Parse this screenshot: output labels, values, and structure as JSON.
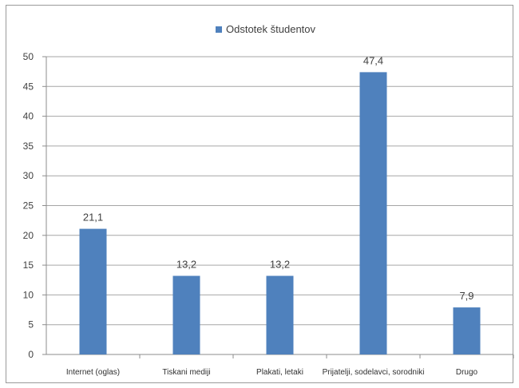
{
  "chart_data": {
    "type": "bar",
    "legend": {
      "label": "Odstotek študentov",
      "position": "top"
    },
    "categories": [
      "Internet (oglas)",
      "Tiskani mediji",
      "Plakati, letaki",
      "Prijatelji, sodelavci, sorodniki",
      "Drugo"
    ],
    "series": [
      {
        "name": "Odstotek študentov",
        "values": [
          21.1,
          13.2,
          13.2,
          47.4,
          7.9
        ],
        "color": "#4f81bd"
      }
    ],
    "data_labels": [
      "21,1",
      "13,2",
      "13,2",
      "47,4",
      "7,9"
    ],
    "ylim": [
      0,
      50
    ],
    "yticks": [
      0,
      5,
      10,
      15,
      20,
      25,
      30,
      35,
      40,
      45,
      50
    ],
    "grid": true,
    "title": "",
    "xlabel": "",
    "ylabel": ""
  }
}
